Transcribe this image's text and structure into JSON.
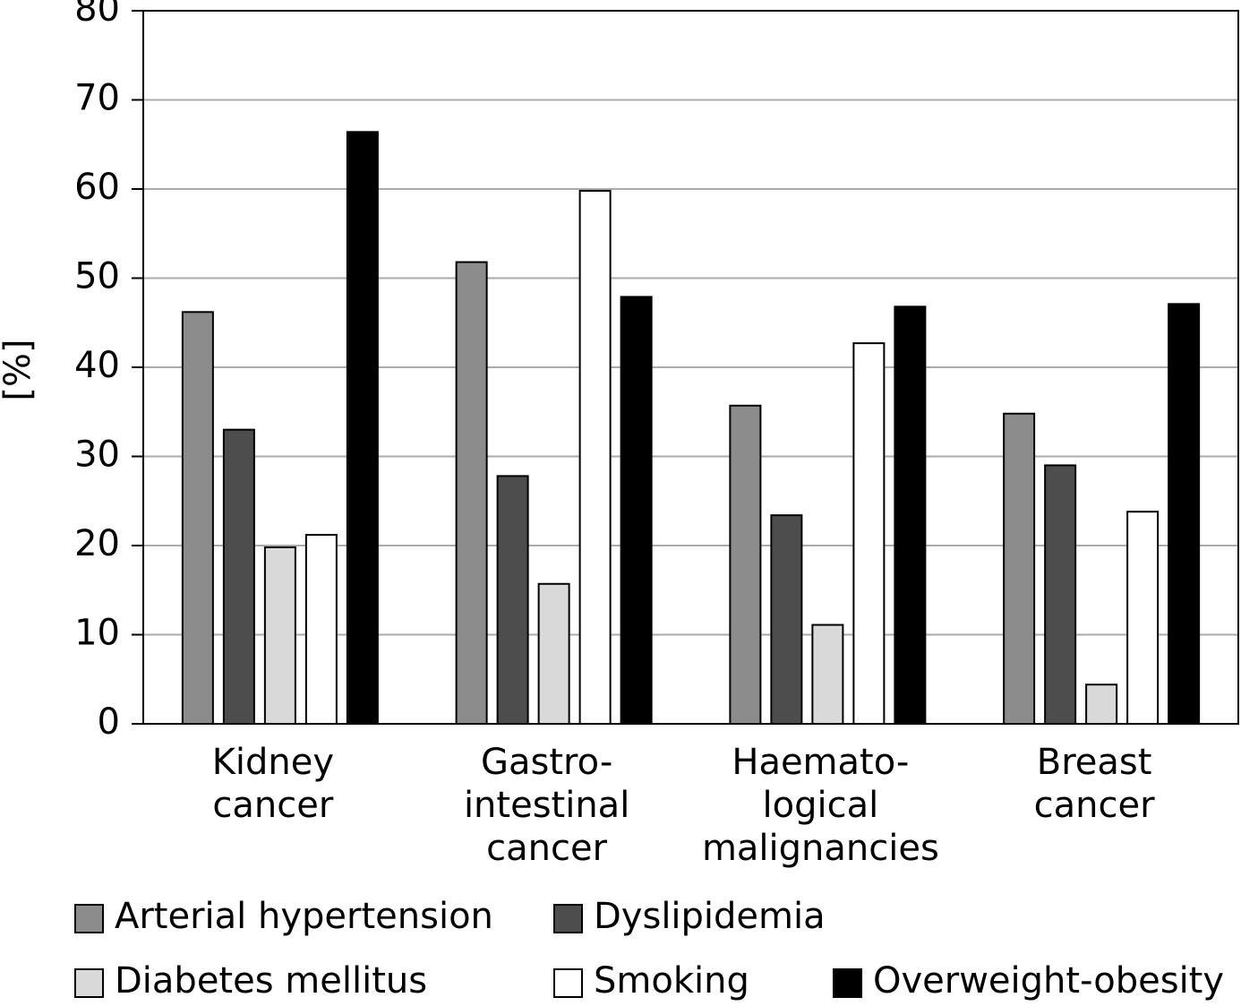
{
  "chart_data": {
    "type": "bar",
    "y_label": "[%]",
    "categories": [
      [
        "Kidney",
        "cancer"
      ],
      [
        "Gastro-",
        "intestinal",
        "cancer"
      ],
      [
        "Haemato-",
        "logical",
        "malignancies"
      ],
      [
        "Breast",
        "cancer"
      ]
    ],
    "series": [
      {
        "name": "Arterial hypertension",
        "color": "#8c8c8c",
        "values": [
          46.2,
          51.8,
          35.7,
          34.8
        ]
      },
      {
        "name": "Dyslipidemia",
        "color": "#4d4d4d",
        "values": [
          33.0,
          27.8,
          23.4,
          29.0
        ]
      },
      {
        "name": "Diabetes mellitus",
        "color": "#d9d9d9",
        "values": [
          19.8,
          15.7,
          11.1,
          4.4
        ]
      },
      {
        "name": "Smoking",
        "color": "#ffffff",
        "values": [
          21.2,
          59.8,
          42.7,
          23.8
        ]
      },
      {
        "name": "Overweight-obesity",
        "color": "#000000",
        "values": [
          66.4,
          47.9,
          46.8,
          47.1
        ]
      }
    ],
    "ylim": [
      0,
      80
    ],
    "yticks": [
      0,
      10,
      20,
      30,
      40,
      50,
      60,
      70,
      80
    ],
    "grid": true
  }
}
